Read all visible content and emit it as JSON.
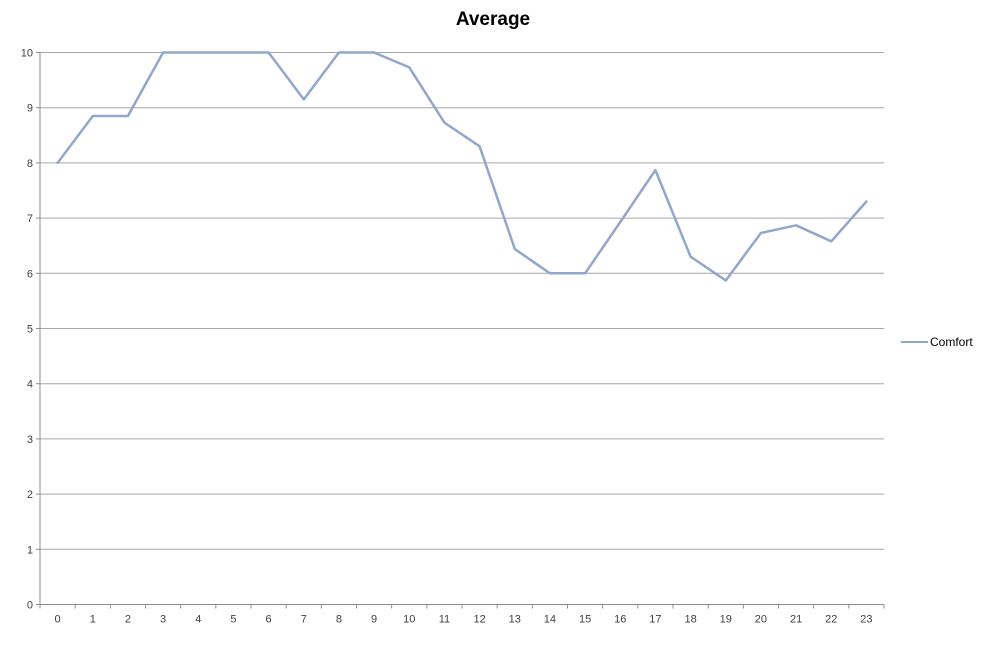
{
  "title": "Average",
  "colors": {
    "series": "#92A7C9",
    "gridline": "#A6A6A6",
    "axis": "#8C8C8C",
    "tick_text": "#3F3F3F",
    "title_text": "#000000",
    "background": "#FFFFFF"
  },
  "legend": {
    "items": [
      {
        "label": "Comfort",
        "color": "#92A7C9"
      }
    ]
  },
  "chart_data": {
    "type": "line",
    "title": "Average",
    "x": [
      0,
      1,
      2,
      3,
      4,
      5,
      6,
      7,
      8,
      9,
      10,
      11,
      12,
      13,
      14,
      15,
      16,
      17,
      18,
      19,
      20,
      21,
      22,
      23
    ],
    "series": [
      {
        "name": "Comfort",
        "color": "#92A7C9",
        "values": [
          8,
          8.85,
          8.85,
          10,
          10,
          10,
          10,
          9.15,
          10,
          10,
          9.73,
          8.73,
          8.3,
          6.44,
          6,
          6,
          6.93,
          7.87,
          6.3,
          5.87,
          6.73,
          6.87,
          6.58,
          7.3
        ]
      }
    ],
    "xlabel": "",
    "ylabel": "",
    "ylim": [
      0,
      10
    ],
    "ytick_step": 1,
    "grid": "horizontal",
    "legend_position": "right"
  }
}
